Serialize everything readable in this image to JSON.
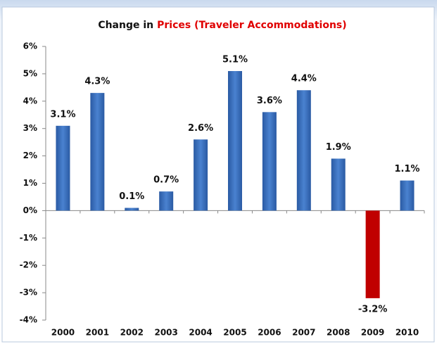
{
  "chart_data": {
    "type": "bar",
    "title": "Change in",
    "title_highlight": "Prices (Traveler Accommodations)",
    "title_highlight_color": "#e00000",
    "categories": [
      "2000",
      "2001",
      "2002",
      "2003",
      "2004",
      "2005",
      "2006",
      "2007",
      "2008",
      "2009",
      "2010"
    ],
    "values": [
      3.1,
      4.3,
      0.1,
      0.7,
      2.6,
      5.1,
      3.6,
      4.4,
      1.9,
      -3.2,
      1.1
    ],
    "value_labels": [
      "3.1%",
      "4.3%",
      "0.1%",
      "0.7%",
      "2.6%",
      "5.1%",
      "3.6%",
      "4.4%",
      "1.9%",
      "-3.2%",
      "1.1%"
    ],
    "color": "#3b6fbf",
    "negative_color": "#c00000",
    "ylim": [
      -4,
      6
    ],
    "yticks": [
      {
        "value": -4,
        "label": "-4%"
      },
      {
        "value": -3,
        "label": "-3%"
      },
      {
        "value": -2,
        "label": "-2%"
      },
      {
        "value": -1,
        "label": "-1%"
      },
      {
        "value": 0,
        "label": "0%"
      },
      {
        "value": 1,
        "label": "1%"
      },
      {
        "value": 2,
        "label": "2%"
      },
      {
        "value": 3,
        "label": "3%"
      },
      {
        "value": 4,
        "label": "4%"
      },
      {
        "value": 5,
        "label": "5%"
      },
      {
        "value": 6,
        "label": "6%"
      }
    ],
    "grid": false
  }
}
